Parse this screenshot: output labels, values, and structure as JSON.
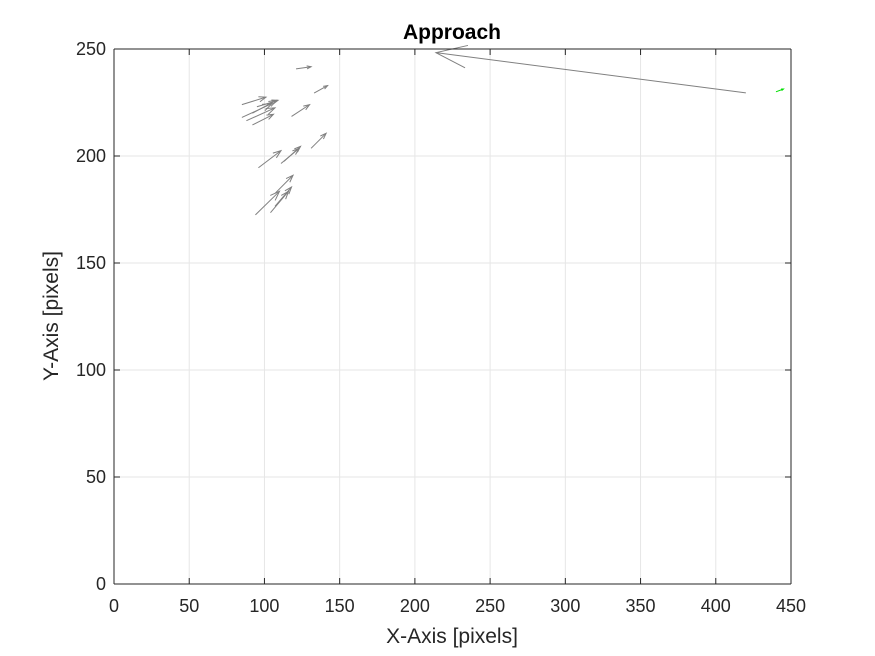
{
  "chart_data": {
    "type": "quiver",
    "title": "Approach",
    "xlabel": "X-Axis [pixels]",
    "ylabel": "Y-Axis [pixels]",
    "xlim": [
      0,
      450
    ],
    "ylim": [
      0,
      250
    ],
    "x_ticks": [
      0,
      50,
      100,
      150,
      200,
      250,
      300,
      350,
      400,
      450
    ],
    "y_ticks": [
      0,
      50,
      100,
      150,
      200,
      250
    ],
    "grid": true,
    "colors": {
      "arrows": "#808080",
      "highlight": "#00e000",
      "grid": "#e6e6e6",
      "axes": "#262626"
    },
    "series": [
      {
        "color": "#808080",
        "vectors": [
          {
            "x": 420,
            "y": 229.5,
            "u": -206,
            "v": 18.8
          },
          {
            "x": 121,
            "y": 240.7,
            "u": 10,
            "v": 1
          },
          {
            "x": 133,
            "y": 229.4,
            "u": 9,
            "v": 3.5
          },
          {
            "x": 85,
            "y": 224.0,
            "u": 16,
            "v": 3.5
          },
          {
            "x": 92,
            "y": 220.0,
            "u": 16,
            "v": 6
          },
          {
            "x": 95,
            "y": 223.0,
            "u": 14,
            "v": 3
          },
          {
            "x": 88,
            "y": 216.5,
            "u": 19,
            "v": 6
          },
          {
            "x": 85,
            "y": 218.0,
            "u": 20,
            "v": 6.5
          },
          {
            "x": 92,
            "y": 214.5,
            "u": 14,
            "v": 5
          },
          {
            "x": 118,
            "y": 218.5,
            "u": 12,
            "v": 5.5
          },
          {
            "x": 131,
            "y": 203.6,
            "u": 10,
            "v": 7
          },
          {
            "x": 96,
            "y": 194.5,
            "u": 15,
            "v": 8
          },
          {
            "x": 111,
            "y": 196.5,
            "u": 12,
            "v": 7
          },
          {
            "x": 113,
            "y": 197.5,
            "u": 11,
            "v": 7
          },
          {
            "x": 107,
            "y": 182.5,
            "u": 12,
            "v": 8.5
          },
          {
            "x": 94,
            "y": 172.5,
            "u": 16,
            "v": 11
          },
          {
            "x": 104,
            "y": 173.5,
            "u": 12,
            "v": 10
          },
          {
            "x": 107,
            "y": 176.5,
            "u": 11,
            "v": 9
          }
        ]
      },
      {
        "color": "#00e000",
        "vectors": [
          {
            "x": 440,
            "y": 230.0,
            "u": 5,
            "v": 1.3
          }
        ]
      }
    ]
  }
}
